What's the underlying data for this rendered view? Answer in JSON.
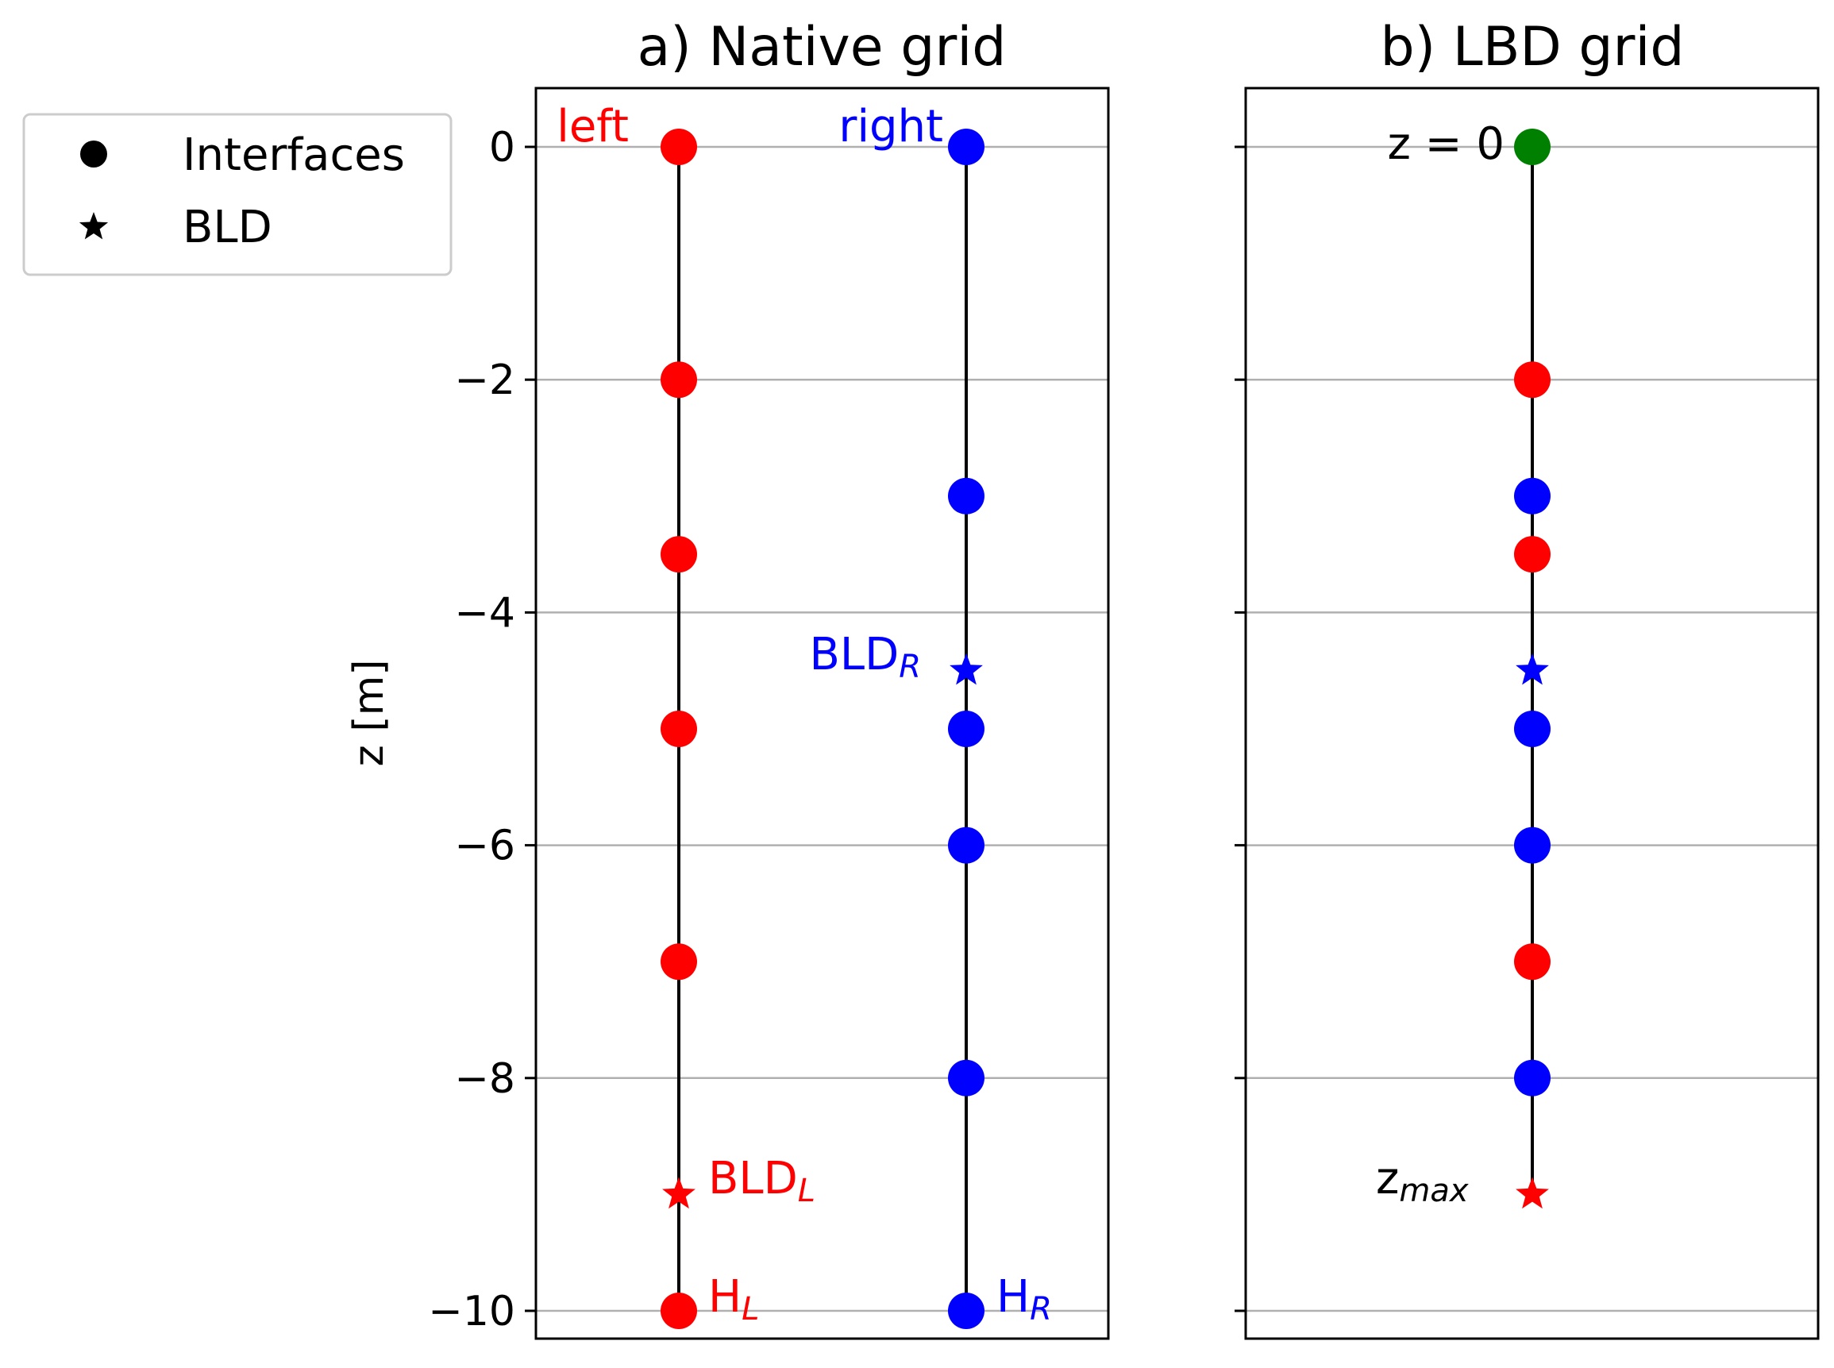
{
  "chart_data": [
    {
      "type": "scatter",
      "title": "a) Native grid",
      "ylabel": "z [m]",
      "ylim": [
        -10.25,
        0.5
      ],
      "yticks": [
        0,
        -2,
        -4,
        -6,
        -8,
        -10
      ],
      "ytick_labels": [
        "0",
        "−2",
        "−4",
        "−6",
        "−8",
        "−10"
      ],
      "grid": "y",
      "columns": [
        {
          "name": "left",
          "color": "#ff0000",
          "interfaces": [
            0,
            -2,
            -3.5,
            -5,
            -7,
            -10
          ],
          "bld": -9,
          "labels": {
            "top": "left",
            "bld_base": "BLD",
            "bld_sub": "L",
            "h_base": "H",
            "h_sub": "L"
          }
        },
        {
          "name": "right",
          "color": "#0000ff",
          "interfaces": [
            0,
            -3,
            -5,
            -6,
            -8,
            -10
          ],
          "bld": -4.5,
          "labels": {
            "top": "right",
            "bld_base": "BLD",
            "bld_sub": "R",
            "h_base": "H",
            "h_sub": "R"
          }
        }
      ]
    },
    {
      "type": "scatter",
      "title": "b) LBD grid",
      "ylim": [
        -10.25,
        0.5
      ],
      "grid": "y",
      "points": [
        {
          "z": 0,
          "color": "#008000",
          "marker": "circle"
        },
        {
          "z": -2,
          "color": "#ff0000",
          "marker": "circle"
        },
        {
          "z": -3,
          "color": "#0000ff",
          "marker": "circle"
        },
        {
          "z": -3.5,
          "color": "#ff0000",
          "marker": "circle"
        },
        {
          "z": -4.5,
          "color": "#0000ff",
          "marker": "star"
        },
        {
          "z": -5,
          "color": "#0000ff",
          "marker": "circle"
        },
        {
          "z": -6,
          "color": "#0000ff",
          "marker": "circle"
        },
        {
          "z": -7,
          "color": "#ff0000",
          "marker": "circle"
        },
        {
          "z": -8,
          "color": "#0000ff",
          "marker": "circle"
        },
        {
          "z": -9,
          "color": "#ff0000",
          "marker": "star"
        }
      ],
      "annotations": {
        "z0": "z = 0",
        "zmax_base": "z",
        "zmax_sub": "max"
      }
    }
  ],
  "legend": {
    "placement": "upper-left",
    "entries": [
      {
        "label": "Interfaces",
        "marker": "circle-icon"
      },
      {
        "label": "BLD",
        "marker": "star-icon"
      }
    ]
  },
  "colors": {
    "line": "#000000",
    "grid": "#b0b0b0",
    "left": "#ff0000",
    "right": "#0000ff",
    "surface": "#008000"
  }
}
